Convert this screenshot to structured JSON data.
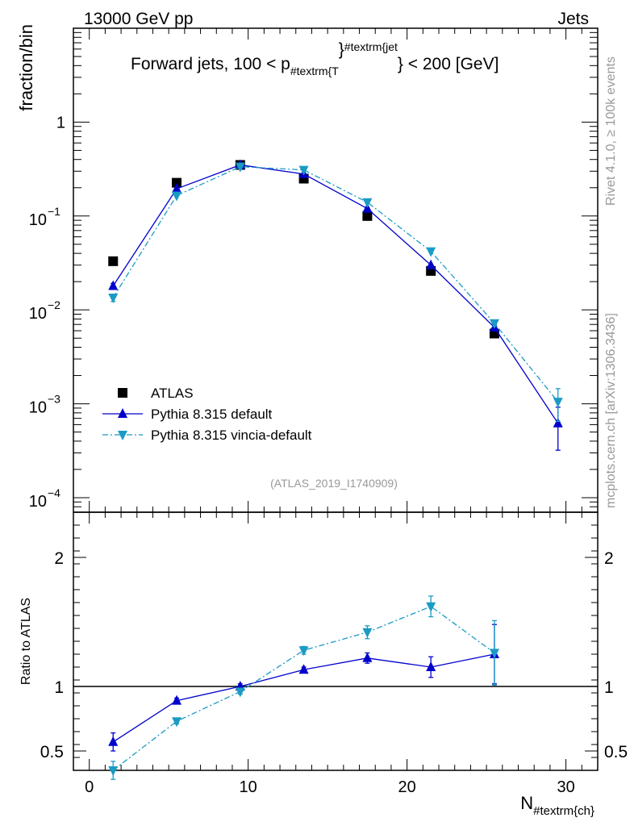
{
  "header": {
    "left": "13000 GeV pp",
    "right": "Jets"
  },
  "side_labels": {
    "rivet": "Rivet 4.1.0, ≥ 100k events",
    "mcplots": "mcplots.cern.ch [arXiv:1306.3436]"
  },
  "colors": {
    "atlas": "#000000",
    "default": "#0000cc",
    "vincia": "#1a9bc4",
    "axis": "#000000",
    "watermark": "#999999"
  },
  "chart_data": [
    {
      "type": "line",
      "panel": "main",
      "title_main": "Forward jets, 100 < p",
      "title_sub": "#textrm{T",
      "title_sup": "#textrm{jet",
      "title_close": "}",
      "title_end": "} < 200 [GeV]",
      "ylabel": "fraction/bin",
      "yscale": "log",
      "ylim": [
        7e-05,
        10
      ],
      "xlim": [
        -1,
        32
      ],
      "ytick_labels": [
        {
          "value": 1,
          "base": "1",
          "exp": ""
        },
        {
          "value": 0.1,
          "base": "10",
          "exp": "−1"
        },
        {
          "value": 0.01,
          "base": "10",
          "exp": "−2"
        },
        {
          "value": 0.001,
          "base": "10",
          "exp": "−3"
        },
        {
          "value": 0.0001,
          "base": "10",
          "exp": "−4"
        }
      ],
      "watermark": "(ATLAS_2019_I1740909)",
      "legend_position": "bottom-left",
      "x": [
        1.5,
        5.5,
        9.5,
        13.5,
        17.5,
        21.5,
        25.5,
        29.5
      ],
      "series": [
        {
          "key": "atlas",
          "name": "ATLAS",
          "marker": "square",
          "values": [
            0.033,
            0.226,
            0.35,
            0.25,
            0.1,
            0.026,
            0.0056,
            null
          ]
        },
        {
          "key": "default",
          "name": "Pythia 8.315 default",
          "marker": "triangle-up",
          "values": [
            0.018,
            0.195,
            0.35,
            0.28,
            0.12,
            0.03,
            0.0065,
            0.00062
          ],
          "errors": [
            0.0012,
            0.004,
            0.005,
            0.004,
            0.003,
            0.001,
            0.0004,
            0.0003
          ]
        },
        {
          "key": "vincia",
          "name": "Pythia 8.315 vincia-default",
          "marker": "triangle-down",
          "values": [
            0.0135,
            0.165,
            0.335,
            0.31,
            0.14,
            0.042,
            0.0072,
            0.00105
          ],
          "errors": [
            0.0012,
            0.004,
            0.005,
            0.004,
            0.003,
            0.0015,
            0.0005,
            0.0004
          ]
        }
      ]
    },
    {
      "type": "line",
      "panel": "ratio",
      "ylabel": "Ratio to ATLAS",
      "xlabel_main": "N",
      "xlabel_sub": "#textrm{ch}",
      "ylim": [
        0.35,
        2.35
      ],
      "xlim": [
        -1,
        32
      ],
      "yticks": [
        0.5,
        1,
        2
      ],
      "ytick_labels": [
        "0.5",
        "1",
        "2"
      ],
      "xticks": [
        0,
        10,
        20,
        30
      ],
      "xtick_labels": [
        "0",
        "10",
        "20",
        "30"
      ],
      "x": [
        1.5,
        5.5,
        9.5,
        13.5,
        17.5,
        21.5,
        25.5
      ],
      "series": [
        {
          "key": "default",
          "name": "Pythia 8.315 default",
          "marker": "triangle-up",
          "values": [
            0.57,
            0.89,
            1.0,
            1.13,
            1.22,
            1.15,
            1.25
          ],
          "errors": [
            0.07,
            0.02,
            0.02,
            0.02,
            0.04,
            0.08,
            0.23
          ]
        },
        {
          "key": "vincia",
          "name": "Pythia 8.315 vincia-default",
          "marker": "triangle-down",
          "values": [
            0.35,
            0.73,
            0.96,
            1.28,
            1.42,
            1.62,
            1.26
          ],
          "errors": [
            0.07,
            0.02,
            0.02,
            0.03,
            0.05,
            0.08,
            0.25
          ]
        }
      ]
    }
  ]
}
